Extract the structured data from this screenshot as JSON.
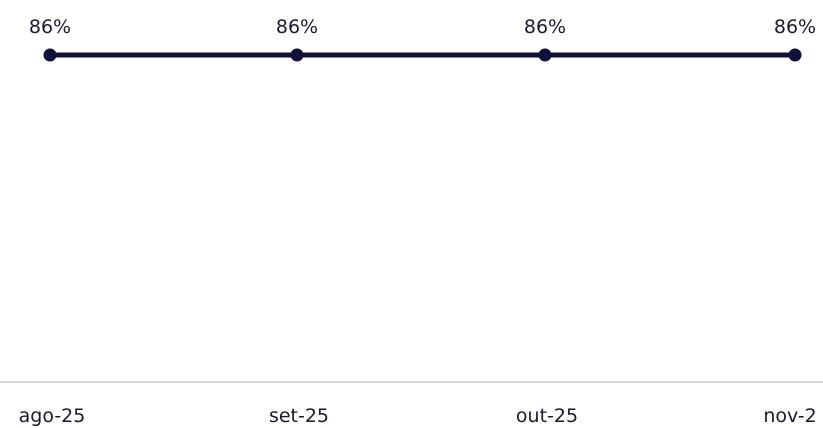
{
  "chart_data": {
    "type": "line",
    "categories": [
      "ago-25",
      "set-25",
      "out-25",
      "nov-2"
    ],
    "series": [
      {
        "values": [
          86,
          86,
          86,
          86
        ],
        "data_labels": [
          "86%",
          "86%",
          "86%",
          "86%"
        ],
        "color": "#10123a"
      }
    ],
    "title": "",
    "xlabel": "",
    "ylabel": "",
    "grid": false,
    "legend": "none",
    "axis_color": "#d9d9d9"
  }
}
